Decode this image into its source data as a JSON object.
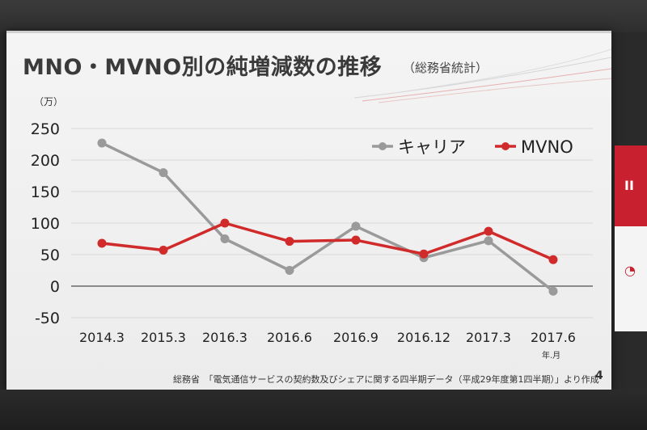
{
  "slide": {
    "title": "MNO・MVNO別の純増減数の推移",
    "subtitle": "（総務省統計）",
    "y_unit": "（万）",
    "x_unit": "年.月",
    "source": "総務省　「電気通信サービスの契約数及びシェアに関する四半期データ（平成29年度第1四半期）」より作成",
    "page_number": "4"
  },
  "side_banner": {
    "text": "II"
  },
  "colors": {
    "carrier": "#9a9a9a",
    "mvno": "#d02a2a",
    "axis": "#8a8a8a",
    "grid": "#d8d8d8",
    "accent_red": "#c8202e"
  },
  "chart_data": {
    "type": "line",
    "categories": [
      "2014.3",
      "2015.3",
      "2016.3",
      "2016.6",
      "2016.9",
      "2016.12",
      "2017.3",
      "2017.6"
    ],
    "series": [
      {
        "name": "キャリア",
        "values": [
          227,
          180,
          75,
          25,
          95,
          45,
          72,
          -8
        ]
      },
      {
        "name": "MVNO",
        "values": [
          68,
          57,
          100,
          71,
          73,
          51,
          87,
          42
        ]
      }
    ],
    "yticks": [
      "250",
      "200",
      "150",
      "100",
      "50",
      "0",
      "-50"
    ],
    "ylim": [
      -50,
      250
    ],
    "grid": true,
    "legend": "top-right",
    "xlabel": "年.月",
    "ylabel": "（万）"
  }
}
